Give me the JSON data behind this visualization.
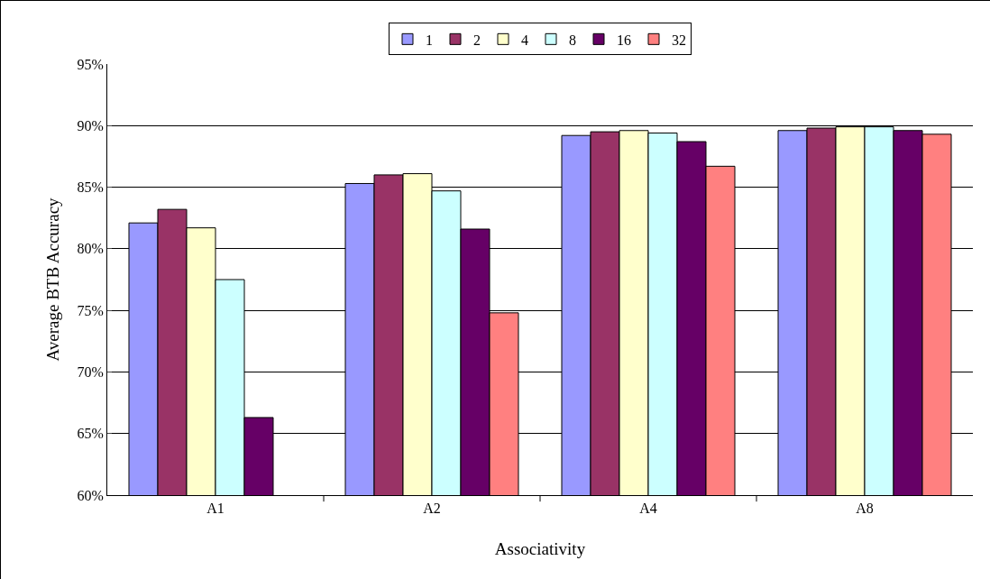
{
  "chart_data": {
    "type": "bar",
    "xlabel": "Associativity",
    "ylabel": "Average BTB Accuracy",
    "categories": [
      "A1",
      "A2",
      "A4",
      "A8"
    ],
    "series": [
      {
        "name": "1",
        "color": "#9999ff",
        "values": [
          82.1,
          85.3,
          89.2,
          89.6
        ]
      },
      {
        "name": "2",
        "color": "#993366",
        "values": [
          83.2,
          86.0,
          89.5,
          89.8
        ]
      },
      {
        "name": "4",
        "color": "#ffffcc",
        "values": [
          81.7,
          86.1,
          89.6,
          89.9
        ]
      },
      {
        "name": "8",
        "color": "#ccffff",
        "values": [
          77.5,
          84.7,
          89.4,
          89.9
        ]
      },
      {
        "name": "16",
        "color": "#660066",
        "values": [
          66.3,
          81.6,
          88.7,
          89.6
        ]
      },
      {
        "name": "32",
        "color": "#ff8080",
        "values": [
          null,
          74.8,
          86.7,
          89.3
        ]
      }
    ],
    "ylim": [
      60,
      95
    ],
    "yticks": [
      {
        "value": 60,
        "label": "60%"
      },
      {
        "value": 65,
        "label": "65%"
      },
      {
        "value": 70,
        "label": "70%"
      },
      {
        "value": 75,
        "label": "75%"
      },
      {
        "value": 80,
        "label": "80%"
      },
      {
        "value": 85,
        "label": "85%"
      },
      {
        "value": 90,
        "label": "90%"
      },
      {
        "value": 95,
        "label": "95%"
      }
    ],
    "grid": "y",
    "legend": "top"
  }
}
